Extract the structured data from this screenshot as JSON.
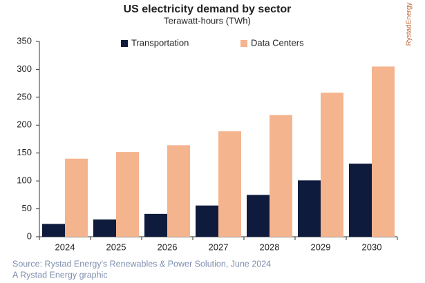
{
  "chart_data": {
    "type": "bar",
    "title": "US electricity demand by sector",
    "subtitle": "Terawatt-hours (TWh)",
    "brand": "RystadEnergy",
    "source": "Source: Rystad Energy's Renewables & Power Solution, June 2024",
    "credit": "A Rystad Energy graphic",
    "categories": [
      "2024",
      "2025",
      "2026",
      "2027",
      "2028",
      "2029",
      "2030"
    ],
    "series": [
      {
        "name": "Transportation",
        "color": "#0f1b3d",
        "values": [
          23,
          31,
          41,
          56,
          75,
          101,
          131
        ]
      },
      {
        "name": "Data Centers",
        "color": "#f4b48e",
        "values": [
          140,
          152,
          164,
          189,
          218,
          258,
          305
        ]
      }
    ],
    "ylim": [
      0,
      350
    ],
    "yticks": [
      0,
      50,
      100,
      150,
      200,
      250,
      300,
      350
    ],
    "grid": false
  }
}
